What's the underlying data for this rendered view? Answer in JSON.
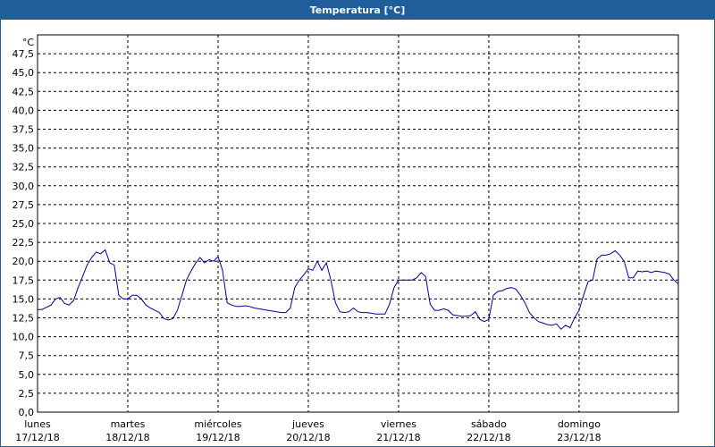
{
  "window": {
    "title": "Temperatura [°C]"
  },
  "chart_data": {
    "type": "line",
    "title": "Temperatura [°C]",
    "ylabel": "°C",
    "ylim": [
      0,
      50
    ],
    "ytick_step": 2.5,
    "yticks": [
      "0,0",
      "2,5",
      "5,0",
      "7,5",
      "10,0",
      "12,5",
      "15,0",
      "17,5",
      "20,0",
      "22,5",
      "25,0",
      "27,5",
      "30,0",
      "32,5",
      "35,0",
      "37,5",
      "40,0",
      "42,5",
      "45,0",
      "47,5"
    ],
    "xlim": [
      0,
      7.1
    ],
    "grid": true,
    "xticks": [
      {
        "day": "lunes",
        "date": "17/12/18"
      },
      {
        "day": "martes",
        "date": "18/12/18"
      },
      {
        "day": "miércoles",
        "date": "19/12/18"
      },
      {
        "day": "jueves",
        "date": "20/12/18"
      },
      {
        "day": "viernes",
        "date": "21/12/18"
      },
      {
        "day": "sábado",
        "date": "22/12/18"
      },
      {
        "day": "domingo",
        "date": "23/12/18"
      }
    ],
    "series": [
      {
        "color": "#0000a0",
        "points": [
          [
            0.0,
            13.6
          ],
          [
            0.05,
            13.6
          ],
          [
            0.1,
            13.9
          ],
          [
            0.15,
            14.2
          ],
          [
            0.2,
            15.0
          ],
          [
            0.25,
            15.2
          ],
          [
            0.3,
            14.4
          ],
          [
            0.35,
            14.2
          ],
          [
            0.4,
            14.8
          ],
          [
            0.45,
            16.5
          ],
          [
            0.5,
            18.0
          ],
          [
            0.55,
            19.5
          ],
          [
            0.6,
            20.5
          ],
          [
            0.65,
            21.2
          ],
          [
            0.7,
            21.0
          ],
          [
            0.75,
            21.5
          ],
          [
            0.8,
            19.8
          ],
          [
            0.85,
            19.5
          ],
          [
            0.9,
            15.5
          ],
          [
            0.95,
            15.0
          ],
          [
            1.0,
            15.0
          ],
          [
            1.05,
            15.5
          ],
          [
            1.1,
            15.5
          ],
          [
            1.15,
            15.0
          ],
          [
            1.2,
            14.2
          ],
          [
            1.25,
            13.8
          ],
          [
            1.3,
            13.5
          ],
          [
            1.35,
            13.2
          ],
          [
            1.4,
            12.4
          ],
          [
            1.45,
            12.2
          ],
          [
            1.5,
            12.4
          ],
          [
            1.55,
            13.5
          ],
          [
            1.6,
            15.5
          ],
          [
            1.65,
            17.5
          ],
          [
            1.7,
            18.7
          ],
          [
            1.75,
            19.7
          ],
          [
            1.8,
            20.5
          ],
          [
            1.85,
            19.8
          ],
          [
            1.9,
            20.2
          ],
          [
            1.95,
            20.0
          ],
          [
            2.0,
            20.6
          ],
          [
            2.05,
            18.8
          ],
          [
            2.1,
            14.5
          ],
          [
            2.15,
            14.2
          ],
          [
            2.2,
            14.0
          ],
          [
            2.25,
            14.0
          ],
          [
            2.3,
            14.1
          ],
          [
            2.35,
            14.0
          ],
          [
            2.4,
            13.8
          ],
          [
            2.45,
            13.7
          ],
          [
            2.5,
            13.6
          ],
          [
            2.55,
            13.5
          ],
          [
            2.6,
            13.4
          ],
          [
            2.65,
            13.3
          ],
          [
            2.7,
            13.2
          ],
          [
            2.75,
            13.2
          ],
          [
            2.8,
            13.8
          ],
          [
            2.85,
            16.5
          ],
          [
            2.9,
            17.5
          ],
          [
            2.95,
            18.2
          ],
          [
            3.0,
            19.0
          ],
          [
            3.05,
            18.8
          ],
          [
            3.1,
            20.0
          ],
          [
            3.15,
            18.8
          ],
          [
            3.2,
            19.8
          ],
          [
            3.25,
            17.5
          ],
          [
            3.3,
            14.5
          ],
          [
            3.35,
            13.3
          ],
          [
            3.4,
            13.2
          ],
          [
            3.45,
            13.3
          ],
          [
            3.5,
            13.8
          ],
          [
            3.55,
            13.3
          ],
          [
            3.6,
            13.2
          ],
          [
            3.65,
            13.2
          ],
          [
            3.7,
            13.1
          ],
          [
            3.75,
            13.0
          ],
          [
            3.8,
            13.0
          ],
          [
            3.85,
            13.0
          ],
          [
            3.9,
            14.3
          ],
          [
            3.95,
            16.5
          ],
          [
            4.0,
            17.5
          ],
          [
            4.05,
            17.5
          ],
          [
            4.1,
            17.5
          ],
          [
            4.15,
            17.5
          ],
          [
            4.2,
            17.8
          ],
          [
            4.25,
            18.5
          ],
          [
            4.3,
            18.0
          ],
          [
            4.35,
            14.3
          ],
          [
            4.4,
            13.5
          ],
          [
            4.45,
            13.5
          ],
          [
            4.5,
            13.7
          ],
          [
            4.55,
            13.5
          ],
          [
            4.6,
            12.9
          ],
          [
            4.65,
            12.8
          ],
          [
            4.7,
            12.7
          ],
          [
            4.75,
            12.7
          ],
          [
            4.8,
            12.8
          ],
          [
            4.85,
            13.3
          ],
          [
            4.9,
            12.3
          ],
          [
            4.95,
            12.0
          ],
          [
            5.0,
            12.3
          ],
          [
            5.05,
            15.5
          ],
          [
            5.1,
            16.0
          ],
          [
            5.15,
            16.1
          ],
          [
            5.2,
            16.4
          ],
          [
            5.25,
            16.5
          ],
          [
            5.3,
            16.3
          ],
          [
            5.35,
            15.5
          ],
          [
            5.4,
            14.5
          ],
          [
            5.45,
            13.2
          ],
          [
            5.5,
            12.5
          ],
          [
            5.55,
            12.0
          ],
          [
            5.6,
            11.8
          ],
          [
            5.65,
            11.6
          ],
          [
            5.7,
            11.5
          ],
          [
            5.75,
            11.7
          ],
          [
            5.8,
            11.0
          ],
          [
            5.85,
            11.5
          ],
          [
            5.9,
            11.2
          ],
          [
            5.95,
            12.5
          ],
          [
            6.0,
            13.5
          ],
          [
            6.05,
            15.5
          ],
          [
            6.1,
            17.3
          ],
          [
            6.15,
            17.5
          ],
          [
            6.2,
            20.3
          ],
          [
            6.25,
            20.8
          ],
          [
            6.3,
            20.8
          ],
          [
            6.35,
            21.0
          ],
          [
            6.4,
            21.4
          ],
          [
            6.45,
            20.8
          ],
          [
            6.5,
            20.0
          ],
          [
            6.55,
            17.8
          ],
          [
            6.6,
            17.8
          ],
          [
            6.65,
            18.7
          ],
          [
            6.7,
            18.6
          ],
          [
            6.75,
            18.7
          ],
          [
            6.8,
            18.5
          ],
          [
            6.85,
            18.7
          ],
          [
            6.9,
            18.6
          ],
          [
            6.95,
            18.5
          ],
          [
            7.0,
            18.3
          ],
          [
            7.05,
            17.5
          ],
          [
            7.1,
            17.0
          ]
        ]
      }
    ]
  }
}
